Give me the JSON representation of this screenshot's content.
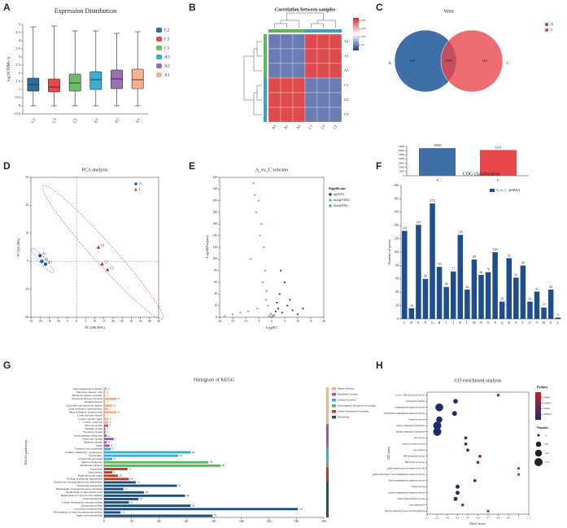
{
  "chart_data": [
    {
      "type": "box",
      "label": "A",
      "title": "Expression Distribution",
      "ylabel": "log10(TPM+1)",
      "ylim": [
        -0.5,
        5
      ],
      "yticks": [
        -0.5,
        0,
        0.5,
        1,
        1.5,
        2,
        2.5,
        3,
        3.5,
        4,
        4.5,
        5
      ],
      "series": [
        {
          "name": "C2",
          "color": "#2e6e9e",
          "values": [
            0,
            0.9,
            1.3,
            1.7,
            4.85
          ]
        },
        {
          "name": "C3",
          "color": "#e8474c",
          "values": [
            0,
            0.85,
            1.15,
            1.65,
            4.9
          ]
        },
        {
          "name": "C1",
          "color": "#6cbf6a",
          "values": [
            0,
            0.9,
            1.4,
            1.95,
            4.6
          ]
        },
        {
          "name": "A3",
          "color": "#3aaed0",
          "values": [
            0,
            1.0,
            1.6,
            2.1,
            4.6
          ]
        },
        {
          "name": "A2",
          "color": "#9b6fb5",
          "values": [
            0,
            1.05,
            1.65,
            2.2,
            4.45
          ]
        },
        {
          "name": "A1",
          "color": "#f6b08e",
          "values": [
            0,
            1.05,
            1.6,
            2.25,
            4.55
          ]
        }
      ]
    },
    {
      "type": "heatmap",
      "label": "B",
      "title": "Correlation between samples",
      "rows": [
        "A2",
        "A1",
        "A3",
        "C1",
        "C2",
        "C3"
      ],
      "columns": [
        "A3",
        "A1",
        "A2",
        "C1",
        "C3",
        "C2"
      ],
      "values": [
        [
          0.9,
          0.9,
          0.9,
          0.99,
          0.99,
          0.99
        ],
        [
          0.9,
          0.9,
          0.9,
          0.99,
          0.99,
          0.99
        ],
        [
          0.9,
          0.9,
          0.9,
          0.99,
          0.99,
          0.99
        ],
        [
          0.99,
          0.99,
          0.99,
          0.9,
          0.9,
          0.9
        ],
        [
          0.99,
          0.99,
          0.99,
          0.9,
          0.9,
          0.9
        ],
        [
          0.99,
          0.99,
          0.99,
          0.9,
          0.9,
          0.9
        ]
      ],
      "colorlim": [
        0.88,
        1
      ],
      "colorticks": [
        0.9,
        0.93,
        0.96,
        0.99
      ],
      "colors": [
        "#1f3a8a",
        "#ffffff",
        "#d62728"
      ]
    },
    {
      "type": "venn",
      "label": "C",
      "title": "Venn",
      "sets": [
        {
          "name": "A",
          "color": "#3f6fa8",
          "only": 640
        },
        {
          "name": "C",
          "color": "#e8474c",
          "only": 181
        }
      ],
      "intersection": 5960,
      "bar": {
        "categories": [
          "A",
          "C"
        ],
        "values": [
          6600,
          6141
        ],
        "ylim": [
          0,
          7000
        ],
        "yticks": [
          0,
          1000,
          2000,
          3000,
          4000,
          5000,
          6000,
          7000
        ]
      }
    },
    {
      "type": "scatter",
      "label": "D",
      "title": "PCA analysis",
      "xlabel": "PC1(86.90%)",
      "ylabel": "PC2(4.28%)",
      "xlim": [
        -25,
        45
      ],
      "xticks": [
        -25,
        -20,
        -15,
        -10,
        -5,
        0,
        5,
        10,
        15,
        20,
        25,
        30,
        35,
        40,
        45
      ],
      "ylim": [
        -20,
        30
      ],
      "yticks": [
        -20,
        -10,
        0,
        10,
        20,
        30
      ],
      "legend": "upper right",
      "reference_lines": true,
      "ellipses": true,
      "series": [
        {
          "name": "A",
          "color": "#1f5fa8",
          "marker": "circle",
          "x": [
            -20,
            -19,
            -17
          ],
          "y": [
            2,
            0,
            -1
          ],
          "labels": [
            "A1",
            "A2",
            "A3"
          ]
        },
        {
          "name": "C",
          "color": "#d62728",
          "marker": "triangle",
          "x": [
            12,
            17,
            14
          ],
          "y": [
            5,
            -3,
            -1
          ],
          "labels": [
            "C1",
            "C2",
            "C3"
          ]
        }
      ]
    },
    {
      "type": "scatter",
      "label": "E",
      "title": "A_vs_C.volcano",
      "xlabel": "Log2FC",
      "ylabel": "-Log10(Padjust)",
      "xlim": [
        -20,
        20
      ],
      "xticks": [
        -20,
        -15,
        -10,
        -5,
        0,
        5,
        10,
        15,
        20
      ],
      "ylim": [
        0,
        240
      ],
      "yticks": [
        0,
        20,
        40,
        60,
        80,
        100,
        120,
        140,
        160,
        180,
        200,
        220,
        240
      ],
      "legend": "right",
      "legend_title": "Significant",
      "series": [
        {
          "name": "up(456)",
          "color": "#1f3f7a",
          "marker": "circle",
          "x": [
            1.5,
            2,
            2.5,
            3,
            4,
            5,
            6,
            8,
            10,
            3.5,
            7,
            12
          ],
          "y": [
            10,
            25,
            15,
            40,
            8,
            60,
            20,
            12,
            5,
            80,
            30,
            15
          ]
        },
        {
          "name": "nosig(5392)",
          "color": "#9a9a9a",
          "marker": "circle",
          "x": [
            -1,
            -0.5,
            0,
            0.5,
            1,
            -0.8,
            0.3,
            0.8,
            -0.2,
            0.6
          ],
          "y": [
            2,
            5,
            1,
            3,
            4,
            1,
            2,
            1,
            6,
            3
          ]
        },
        {
          "name": "down(936)",
          "color": "#5cb85c",
          "marker": "circle",
          "x": [
            -1.5,
            -2,
            -2.5,
            -3,
            -4,
            -5,
            -6,
            -7,
            -8,
            -3.5,
            -4.5,
            -2.2,
            -6.5,
            -9,
            -5.5,
            -12,
            -15,
            -18
          ],
          "y": [
            20,
            45,
            80,
            120,
            160,
            200,
            180,
            230,
            100,
            60,
            140,
            30,
            210,
            10,
            15,
            8,
            5,
            2
          ]
        }
      ]
    },
    {
      "type": "bar",
      "label": "F",
      "title": "COG classification",
      "ylabel": "Number of genes",
      "categories": [
        "C",
        "D",
        "E",
        "F",
        "G",
        "H",
        "I",
        "J",
        "K",
        "L",
        "M",
        "N",
        "O",
        "P",
        "Q",
        "R",
        "S",
        "T",
        "U",
        "V",
        "W",
        "X",
        "Z"
      ],
      "ylim": [
        0,
        200
      ],
      "yticks": [
        0,
        20,
        40,
        60,
        80,
        100,
        120,
        140,
        160,
        180,
        200
      ],
      "series": [
        {
          "name": "A_vs_C_diffRNA",
          "color": "#1f4e8c",
          "values": [
            132,
            16,
            141,
            60,
            173,
            78,
            48,
            71,
            126,
            44,
            89,
            66,
            70,
            100,
            26,
            91,
            62,
            80,
            26,
            41,
            17,
            44,
            2
          ]
        }
      ]
    },
    {
      "type": "hbar",
      "label": "G",
      "title": "Histogram of KEGG",
      "ylabel": "KEGG pathways",
      "xlim": [
        0,
        160
      ],
      "xticks": [
        0,
        20,
        40,
        60,
        80,
        100,
        120,
        140,
        160
      ],
      "series": [
        {
          "name": "Human Diseases",
          "color": "#f7b08c",
          "categories": [
            "Neurodegenerative disease",
            "Infectious disease: viral",
            "Infectious disease: parasitic",
            "Infectious disease: bacterial",
            "Immune disease",
            "Endocrine and metabolic disease",
            "Drug resistance: antineoplastic",
            "Drug resistance: antimicrobial",
            "Cardiovascular disease",
            "Cancer: specific types",
            "Cancer: overview"
          ],
          "values": [
            2,
            1,
            1,
            9,
            1,
            6,
            3,
            9,
            1,
            3,
            3
          ]
        },
        {
          "name": "Organismal Systems",
          "color": "#9b59b6",
          "categories": [
            "Nervous system",
            "Immune system",
            "Excretory system",
            "Environmental adaptation",
            "Endocrine system",
            "Digestive system",
            "Aging"
          ],
          "values": [
            3,
            1,
            1,
            2,
            7,
            2,
            4
          ]
        },
        {
          "name": "Cellular Processes",
          "color": "#3aaed0",
          "categories": [
            "Transport and catabolism",
            "Cellular community - prokaryotes",
            "Cell motility",
            "Cell growth and death"
          ],
          "values": [
            5,
            63,
            54,
            6
          ]
        },
        {
          "name": "Environmental Information Processing",
          "color": "#5cb85c",
          "categories": [
            "Signal transduction",
            "Membrane transport"
          ],
          "values": [
            76,
            85
          ]
        },
        {
          "name": "Genetic Information Processing",
          "color": "#c0392b",
          "categories": [
            "Translation",
            "Transcription",
            "Replication and repair",
            "Folding, sorting and degradation"
          ],
          "values": [
            17,
            6,
            10,
            18
          ]
        },
        {
          "name": "Metabolism",
          "color": "#1f4e79",
          "categories": [
            "Xenobiotics biodegradation and metabolism",
            "Nucleotide metabolism",
            "Metabolism of terpenoids and polyketides",
            "Metabolism of other amino acids",
            "Metabolism of cofactors and vitamins",
            "Lipid metabolism",
            "Glycan biosynthesis and metabolism",
            "Energy metabolism",
            "Carbohydrate metabolism",
            "Biosynthesis of other secondary metabolites",
            "Amino acid metabolism"
          ],
          "values": [
            23,
            53,
            14,
            29,
            59,
            25,
            18,
            63,
            141,
            12,
            79
          ]
        }
      ]
    },
    {
      "type": "dot",
      "label": "H",
      "title": "GO enrichment analysis",
      "xlabel": "Rich factor",
      "ylabel": "GO term",
      "categories": [
        "de novo' IMP biosynthetic process",
        "carbohydrate transport",
        "transmembrane transporter activity",
        "carbohydrate transmembrane transporter activity",
        "transporter activity",
        "integral component of membrane",
        "intrinsic component of membrane",
        "pore activity",
        "wide pore channel activity",
        "pore complex",
        "IMP biosynthetic process",
        "IMP metabolic process",
        "gamma-aminobutyric acid metabolic process",
        "gamma-aminobutyric acid transmembrane transporter activity",
        "hexose transmembrane transporter activity",
        "channel activity",
        "passive transmembrane transporter activity",
        "cellular amide metabolic process",
        "pilus organization",
        "galactose metabolic process via UDP-galactose"
      ],
      "values": [
        0.8,
        0.38,
        0.22,
        0.37,
        0.22,
        0.2,
        0.2,
        0.48,
        0.48,
        0.5,
        0.62,
        0.6,
        1,
        1,
        0.57,
        0.4,
        0.4,
        0.38,
        0.45,
        0.7
      ],
      "sizes": [
        8,
        40,
        160,
        45,
        90,
        170,
        172,
        12,
        12,
        12,
        10,
        10,
        5,
        5,
        12,
        30,
        30,
        30,
        8,
        6
      ],
      "padjust": [
        0.00018,
        2e-05,
        0,
        1e-05,
        1e-05,
        0,
        0,
        8e-05,
        8e-05,
        9e-05,
        0.00012,
        0.00012,
        0.0002,
        0.0002,
        0.0001,
        4e-05,
        4e-05,
        4e-05,
        0.00015,
        0.00022
      ],
      "xlim": [
        0.1,
        1.1
      ],
      "xticks": [
        0.1,
        0.2,
        0.3,
        0.4,
        0.5,
        0.6,
        0.7,
        0.8,
        0.9,
        1,
        1.1
      ],
      "color_title": "Padjust",
      "colorlim": [
        0,
        0.00025
      ],
      "colorticks": [
        5e-05,
        0.0001,
        0.00015,
        0.0002
      ],
      "colors": [
        "#1c2c6b",
        "#c81e2a"
      ],
      "size_title": "Number",
      "size_legend": [
        5,
        60,
        115,
        172
      ]
    }
  ]
}
